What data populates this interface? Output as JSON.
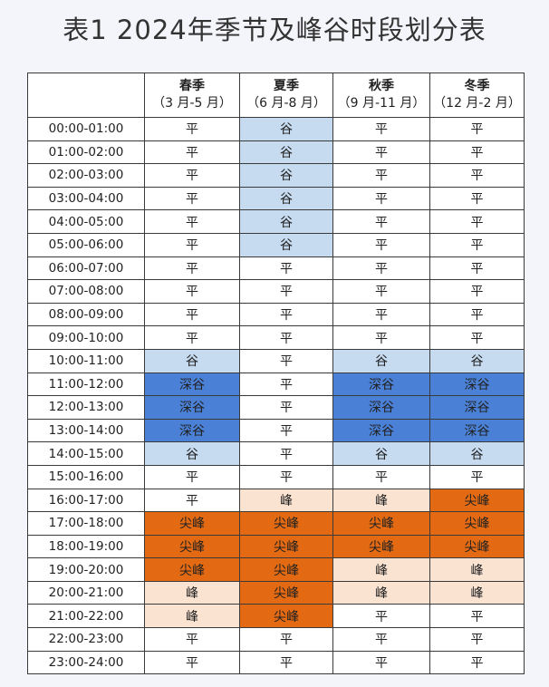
{
  "title": "表1  2024年季节及峰谷时段划分表",
  "seasons": [
    {
      "name": "春季",
      "range": "（3 月-5 月）"
    },
    {
      "name": "夏季",
      "range": "（6 月-8 月）"
    },
    {
      "name": "秋季",
      "range": "（9 月-11 月）"
    },
    {
      "name": "冬季",
      "range": "（12 月-2 月）"
    }
  ],
  "colors": {
    "平": "#ffffff",
    "谷": "#c6daf0",
    "深谷": "#4a80d6",
    "峰": "#fbe3d2",
    "尖峰": "#e36a12"
  },
  "rows": [
    {
      "time": "00:00-01:00",
      "cells": [
        "平",
        "谷",
        "平",
        "平"
      ]
    },
    {
      "time": "01:00-02:00",
      "cells": [
        "平",
        "谷",
        "平",
        "平"
      ]
    },
    {
      "time": "02:00-03:00",
      "cells": [
        "平",
        "谷",
        "平",
        "平"
      ]
    },
    {
      "time": "03:00-04:00",
      "cells": [
        "平",
        "谷",
        "平",
        "平"
      ]
    },
    {
      "time": "04:00-05:00",
      "cells": [
        "平",
        "谷",
        "平",
        "平"
      ]
    },
    {
      "time": "05:00-06:00",
      "cells": [
        "平",
        "谷",
        "平",
        "平"
      ]
    },
    {
      "time": "06:00-07:00",
      "cells": [
        "平",
        "平",
        "平",
        "平"
      ]
    },
    {
      "time": "07:00-08:00",
      "cells": [
        "平",
        "平",
        "平",
        "平"
      ]
    },
    {
      "time": "08:00-09:00",
      "cells": [
        "平",
        "平",
        "平",
        "平"
      ]
    },
    {
      "time": "09:00-10:00",
      "cells": [
        "平",
        "平",
        "平",
        "平"
      ]
    },
    {
      "time": "10:00-11:00",
      "cells": [
        "谷",
        "平",
        "谷",
        "谷"
      ]
    },
    {
      "time": "11:00-12:00",
      "cells": [
        "深谷",
        "平",
        "深谷",
        "深谷"
      ]
    },
    {
      "time": "12:00-13:00",
      "cells": [
        "深谷",
        "平",
        "深谷",
        "深谷"
      ]
    },
    {
      "time": "13:00-14:00",
      "cells": [
        "深谷",
        "平",
        "深谷",
        "深谷"
      ]
    },
    {
      "time": "14:00-15:00",
      "cells": [
        "谷",
        "平",
        "谷",
        "谷"
      ]
    },
    {
      "time": "15:00-16:00",
      "cells": [
        "平",
        "平",
        "平",
        "平"
      ]
    },
    {
      "time": "16:00-17:00",
      "cells": [
        "平",
        "峰",
        "峰",
        "尖峰"
      ]
    },
    {
      "time": "17:00-18:00",
      "cells": [
        "尖峰",
        "尖峰",
        "尖峰",
        "尖峰"
      ]
    },
    {
      "time": "18:00-19:00",
      "cells": [
        "尖峰",
        "尖峰",
        "尖峰",
        "尖峰"
      ]
    },
    {
      "time": "19:00-20:00",
      "cells": [
        "尖峰",
        "尖峰",
        "峰",
        "峰"
      ]
    },
    {
      "time": "20:00-21:00",
      "cells": [
        "峰",
        "尖峰",
        "峰",
        "峰"
      ]
    },
    {
      "time": "21:00-22:00",
      "cells": [
        "峰",
        "尖峰",
        "平",
        "平"
      ]
    },
    {
      "time": "22:00-23:00",
      "cells": [
        "平",
        "平",
        "平",
        "平"
      ]
    },
    {
      "time": "23:00-24:00",
      "cells": [
        "平",
        "平",
        "平",
        "平"
      ]
    }
  ]
}
